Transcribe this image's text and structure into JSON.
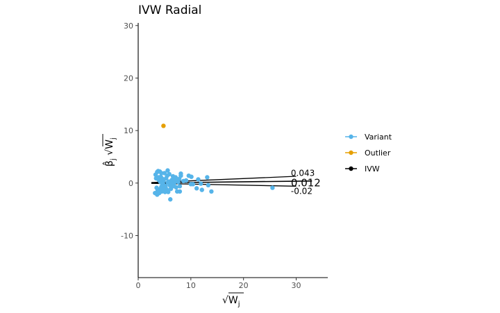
{
  "chart_data": {
    "type": "scatter",
    "title": "IVW Radial",
    "xlabel": "√W_j",
    "ylabel": "β̂_j √W_j",
    "xlim": [
      0,
      36
    ],
    "ylim": [
      -18,
      30.5
    ],
    "x_ticks": [
      0,
      10,
      20,
      30
    ],
    "y_ticks": [
      -10,
      0,
      10,
      20,
      30
    ],
    "x_tick_labels": [
      "0",
      "10",
      "20",
      "30"
    ],
    "y_tick_labels": [
      "-10",
      "0",
      "10",
      "20",
      "30"
    ],
    "grid": false,
    "legend_position": "right",
    "legend": [
      {
        "label": "Variant",
        "color": "#56B4E9"
      },
      {
        "label": "Outlier",
        "color": "#E69F00"
      },
      {
        "label": "IVW",
        "color": "#000000"
      }
    ],
    "series": [
      {
        "name": "Variant",
        "color": "#56B4E9",
        "points": [
          [
            3.3,
            1.6
          ],
          [
            3.6,
            2.1
          ],
          [
            3.8,
            2.3
          ],
          [
            4.1,
            2.2
          ],
          [
            4.4,
            1.9
          ],
          [
            3.4,
            0.9
          ],
          [
            3.9,
            0.6
          ],
          [
            4.2,
            0.2
          ],
          [
            4.6,
            -0.3
          ],
          [
            3.5,
            -0.9
          ],
          [
            3.7,
            -1.4
          ],
          [
            4.0,
            -1.9
          ],
          [
            3.2,
            -1.9
          ],
          [
            3.6,
            -2.2
          ],
          [
            4.5,
            -1.6
          ],
          [
            4.9,
            -1.1
          ],
          [
            5.2,
            -0.6
          ],
          [
            4.8,
            0.4
          ],
          [
            5.3,
            0.9
          ],
          [
            5.5,
            1.4
          ],
          [
            5.0,
            1.9
          ],
          [
            5.6,
            2.4
          ],
          [
            4.3,
            1.2
          ],
          [
            4.7,
            -0.1
          ],
          [
            5.8,
            0.3
          ],
          [
            6.0,
            -0.4
          ],
          [
            5.4,
            -1.2
          ],
          [
            5.1,
            -1.7
          ],
          [
            5.7,
            -1.7
          ],
          [
            6.2,
            -1.1
          ],
          [
            6.4,
            0.6
          ],
          [
            6.6,
            1.3
          ],
          [
            6.9,
            0.9
          ],
          [
            6.8,
            -0.1
          ],
          [
            7.2,
            -0.8
          ],
          [
            7.4,
            0.4
          ],
          [
            7.1,
            1.1
          ],
          [
            7.6,
            0.2
          ],
          [
            7.8,
            0.8
          ],
          [
            7.9,
            -0.6
          ],
          [
            8.1,
            1.4
          ],
          [
            8.1,
            1.8
          ],
          [
            7.4,
            -1.6
          ],
          [
            7.9,
            -1.6
          ],
          [
            8.6,
            0.4
          ],
          [
            9.1,
            0.5
          ],
          [
            9.6,
            1.4
          ],
          [
            10.1,
            1.2
          ],
          [
            10.4,
            -0.2
          ],
          [
            10.0,
            -0.2
          ],
          [
            11.1,
            -1.0
          ],
          [
            11.4,
            0.7
          ],
          [
            11.9,
            -0.1
          ],
          [
            12.1,
            -1.3
          ],
          [
            13.1,
            1.1
          ],
          [
            13.3,
            -0.4
          ],
          [
            13.9,
            -1.6
          ],
          [
            25.5,
            -0.9
          ],
          [
            6.1,
            -3.1
          ],
          [
            6.6,
            -0.6
          ],
          [
            5.9,
            1.7
          ],
          [
            4.4,
            -0.7
          ],
          [
            3.9,
            1.1
          ],
          [
            4.6,
            0.8
          ],
          [
            5.0,
            -0.5
          ],
          [
            5.6,
            0.1
          ],
          [
            6.3,
            0.0
          ],
          [
            6.7,
            -0.2
          ],
          [
            7.0,
            0.3
          ],
          [
            4.1,
            -1.2
          ]
        ]
      },
      {
        "name": "Outlier",
        "color": "#E69F00",
        "points": [
          [
            4.8,
            10.9
          ]
        ]
      },
      {
        "name": "IVW",
        "color": "#000000",
        "lines": [
          {
            "slope": 0.012,
            "x": [
              2.5,
              33.0
            ]
          },
          {
            "slope": 0.043,
            "x": [
              2.5,
              30.0
            ]
          },
          {
            "slope": -0.02,
            "x": [
              2.5,
              30.0
            ]
          }
        ]
      }
    ],
    "annotations": [
      {
        "text": "0.043",
        "x": 29.0,
        "y": 1.9,
        "size": "small"
      },
      {
        "text": "0.012",
        "x": 29.0,
        "y": 0.1,
        "size": "large"
      },
      {
        "text": "-0.02",
        "x": 29.0,
        "y": -1.5,
        "size": "small"
      }
    ]
  }
}
